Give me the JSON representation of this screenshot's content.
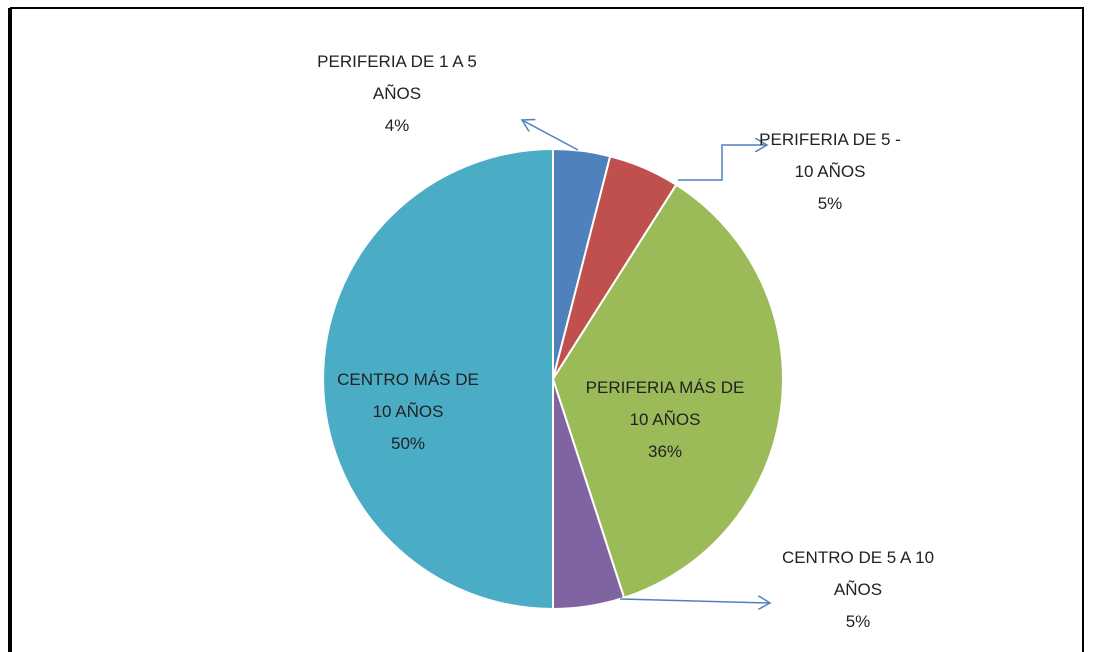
{
  "chart_data": {
    "type": "pie",
    "categories": [
      "PERIFERIA DE 1 A 5 AÑOS",
      "PERIFERIA DE 5 - 10 AÑOS",
      "PERIFERIA MÁS DE 10 AÑOS",
      "CENTRO DE 5 A 10 AÑOS",
      "CENTRO MÁS DE 10 AÑOS"
    ],
    "values": [
      4,
      5,
      36,
      5,
      50
    ],
    "value_labels": [
      "4%",
      "5%",
      "36%",
      "5%",
      "50%"
    ],
    "colors": [
      "#4f81bd",
      "#c0504d",
      "#9bbb59",
      "#8064a2",
      "#4bacc6"
    ]
  }
}
